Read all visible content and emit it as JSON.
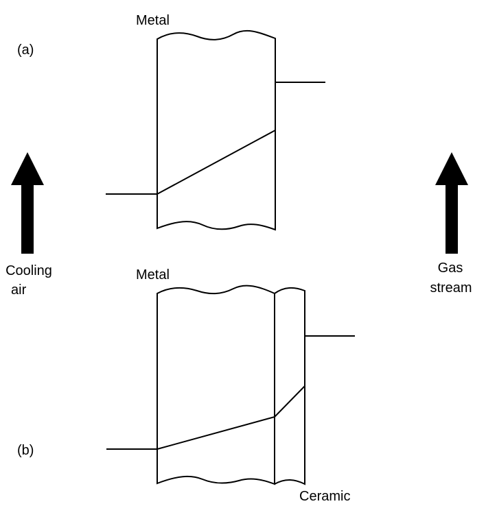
{
  "panel_a": {
    "id_label": "(a)",
    "wall_label": "Metal"
  },
  "panel_b": {
    "id_label": "(b)",
    "wall_label": "Metal",
    "coating_label": "Ceramic"
  },
  "left_arrow": {
    "line1": "Cooling",
    "line2": "air"
  },
  "right_arrow": {
    "line1": "Gas",
    "line2": "stream"
  }
}
